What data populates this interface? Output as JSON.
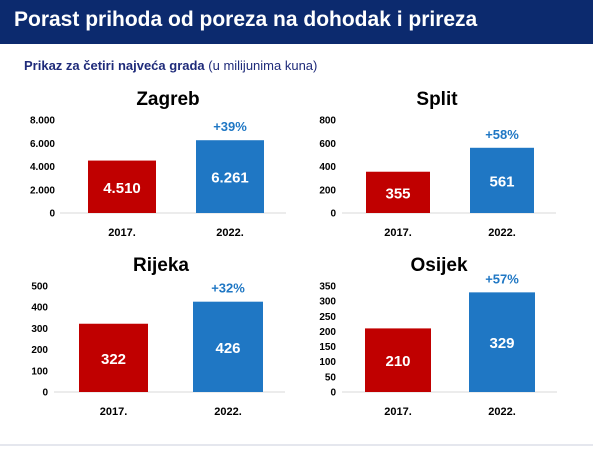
{
  "header": {
    "title": "Porast prihoda od poreza na dohodak i prireza"
  },
  "subtitle": {
    "bold": "Prikaz za četiri najveća grada",
    "normal": " (u milijunima kuna)"
  },
  "colors": {
    "header_bg": "#0c2a6e",
    "bar_2017": "#c00000",
    "bar_2022": "#1f77c4",
    "growth_text": "#1f77c4",
    "title_text": "#000000"
  },
  "chart_data": [
    {
      "type": "bar",
      "title": "Zagreb",
      "categories": [
        "2017.",
        "2022."
      ],
      "values": [
        4510,
        6261
      ],
      "value_labels": [
        "4.510",
        "6.261"
      ],
      "growth_label": "+39%",
      "ylim": [
        0,
        8000
      ],
      "yticks": [
        0,
        2000,
        4000,
        6000,
        8000
      ],
      "ytick_labels": [
        "0",
        "2.000",
        "4.000",
        "6.000",
        "8.000"
      ],
      "grid": false,
      "legend": "none"
    },
    {
      "type": "bar",
      "title": "Split",
      "categories": [
        "2017.",
        "2022."
      ],
      "values": [
        355,
        561
      ],
      "value_labels": [
        "355",
        "561"
      ],
      "growth_label": "+58%",
      "ylim": [
        0,
        800
      ],
      "yticks": [
        0,
        200,
        400,
        600,
        800
      ],
      "ytick_labels": [
        "0",
        "200",
        "400",
        "600",
        "800"
      ],
      "grid": false,
      "legend": "none"
    },
    {
      "type": "bar",
      "title": "Rijeka",
      "categories": [
        "2017.",
        "2022."
      ],
      "values": [
        322,
        426
      ],
      "value_labels": [
        "322",
        "426"
      ],
      "growth_label": "+32%",
      "ylim": [
        0,
        500
      ],
      "yticks": [
        0,
        100,
        200,
        300,
        400,
        500
      ],
      "ytick_labels": [
        "0",
        "100",
        "200",
        "300",
        "400",
        "500"
      ],
      "grid": false,
      "legend": "none"
    },
    {
      "type": "bar",
      "title": "Osijek",
      "categories": [
        "2017.",
        "2022."
      ],
      "values": [
        210,
        329
      ],
      "value_labels": [
        "210",
        "329"
      ],
      "growth_label": "+57%",
      "ylim": [
        0,
        350
      ],
      "yticks": [
        0,
        50,
        100,
        150,
        200,
        250,
        300,
        350
      ],
      "ytick_labels": [
        "0",
        "50",
        "100",
        "150",
        "200",
        "250",
        "300",
        "350"
      ],
      "grid": false,
      "legend": "none"
    }
  ]
}
